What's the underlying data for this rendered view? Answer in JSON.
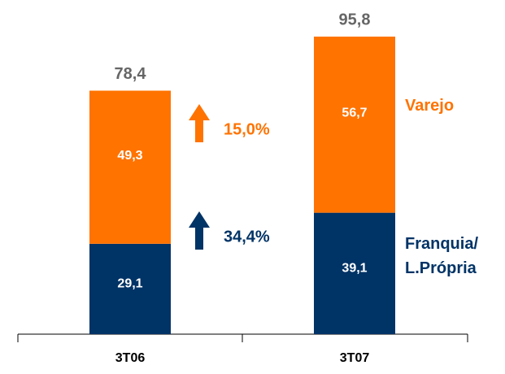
{
  "chart_data": {
    "type": "stacked_bar",
    "categories": [
      "3T06",
      "3T07"
    ],
    "series": [
      {
        "name": "Franquia/ L.Própria",
        "color": "#003366",
        "values": [
          29.1,
          39.1
        ],
        "value_labels": [
          "29,1",
          "39,1"
        ]
      },
      {
        "name": "Varejo",
        "color": "#FF7300",
        "values": [
          49.3,
          56.7
        ],
        "value_labels": [
          "49,3",
          "56,7"
        ]
      }
    ],
    "totals": [
      78.4,
      95.8
    ],
    "total_labels": [
      "78,4",
      "95,8"
    ],
    "annotations": [
      {
        "text": "15,0%",
        "color": "#FF7300"
      },
      {
        "text": "34,4%",
        "color": "#003366"
      }
    ],
    "ylim": [
      0,
      100
    ]
  }
}
